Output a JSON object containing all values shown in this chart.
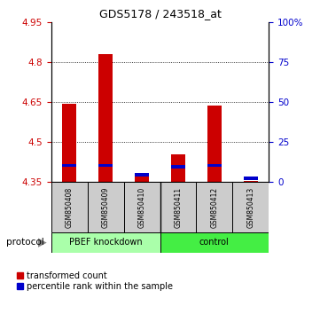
{
  "title": "GDS5178 / 243518_at",
  "samples": [
    "GSM850408",
    "GSM850409",
    "GSM850410",
    "GSM850411",
    "GSM850412",
    "GSM850413"
  ],
  "red_values": [
    4.643,
    4.828,
    4.375,
    4.455,
    4.637,
    4.355
  ],
  "blue_values_pct": [
    10.5,
    10.5,
    4.5,
    9.5,
    10.5,
    2.5
  ],
  "ymin": 4.35,
  "ymax": 4.95,
  "yticks": [
    4.35,
    4.5,
    4.65,
    4.8,
    4.95
  ],
  "ytick_labels": [
    "4.35",
    "4.5",
    "4.65",
    "4.8",
    "4.95"
  ],
  "right_yticks": [
    0,
    25,
    50,
    75,
    100
  ],
  "right_ytick_labels": [
    "0",
    "25",
    "50",
    "75",
    "100%"
  ],
  "group1_label": "PBEF knockdown",
  "group2_label": "control",
  "group1_color": "#aaffaa",
  "group2_color": "#44ee44",
  "protocol_label": "protocol",
  "bar_width": 0.4,
  "red_color": "#cc0000",
  "blue_color": "#0000cc",
  "left_tick_color": "#cc0000",
  "right_tick_color": "#0000cc",
  "bg_color": "#ffffff",
  "legend_red": "transformed count",
  "legend_blue": "percentile rank within the sample",
  "grid_dotted_vals": [
    4.5,
    4.65,
    4.8
  ]
}
